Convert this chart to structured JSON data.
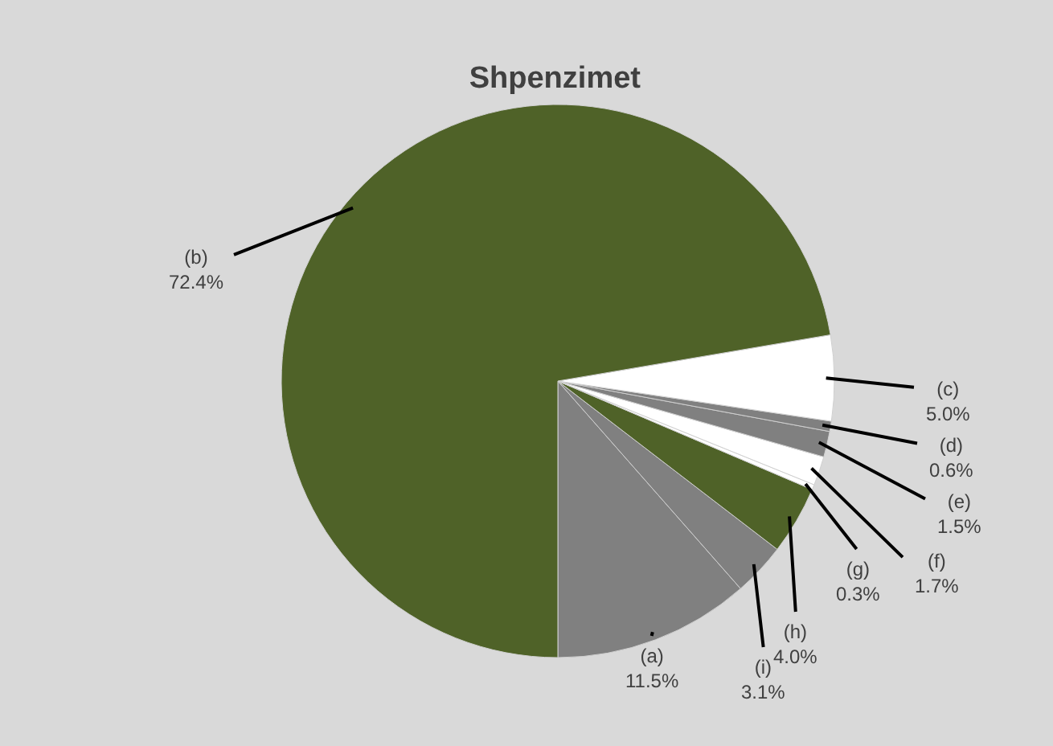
{
  "chart_data": {
    "type": "pie",
    "title": "Shpenzimet",
    "categories": [
      "(a)",
      "(i)",
      "(h)",
      "(g)",
      "(f)",
      "(e)",
      "(d)",
      "(c)",
      "(b)"
    ],
    "values": [
      11.5,
      3.1,
      4.0,
      0.3,
      1.7,
      1.5,
      0.6,
      5.0,
      72.4
    ],
    "value_labels": [
      "11.5%",
      "3.1%",
      "4.0%",
      "0.3%",
      "1.7%",
      "1.5%",
      "0.6%",
      "5.0%",
      "72.4%"
    ],
    "colors": [
      "#808080",
      "#808080",
      "#4f6228",
      "#ffffff",
      "#ffffff",
      "#808080",
      "#808080",
      "#ffffff",
      "#4f6228"
    ],
    "legend": false
  }
}
